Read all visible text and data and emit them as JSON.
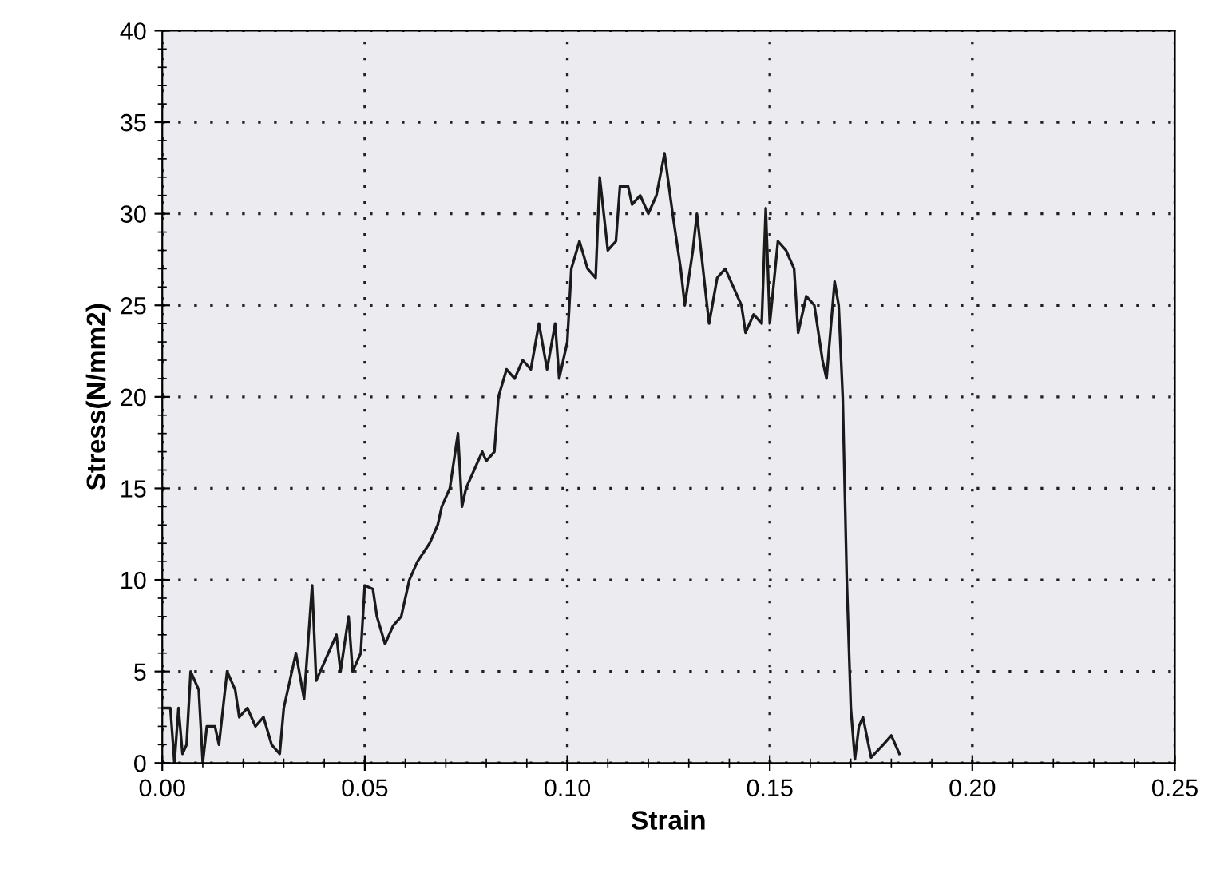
{
  "chart_data": {
    "type": "line",
    "xlabel": "Strain",
    "ylabel": "Stress(N/mm2)",
    "x": [
      0.0,
      0.002,
      0.003,
      0.004,
      0.005,
      0.006,
      0.007,
      0.009,
      0.01,
      0.011,
      0.013,
      0.014,
      0.016,
      0.018,
      0.019,
      0.021,
      0.023,
      0.025,
      0.027,
      0.029,
      0.03,
      0.033,
      0.035,
      0.037,
      0.038,
      0.041,
      0.043,
      0.044,
      0.046,
      0.047,
      0.049,
      0.05,
      0.052,
      0.053,
      0.055,
      0.057,
      0.059,
      0.061,
      0.063,
      0.066,
      0.068,
      0.069,
      0.071,
      0.073,
      0.074,
      0.075,
      0.077,
      0.079,
      0.08,
      0.082,
      0.083,
      0.085,
      0.087,
      0.089,
      0.091,
      0.093,
      0.095,
      0.097,
      0.098,
      0.1,
      0.101,
      0.103,
      0.105,
      0.107,
      0.108,
      0.11,
      0.112,
      0.113,
      0.115,
      0.116,
      0.118,
      0.12,
      0.122,
      0.124,
      0.126,
      0.128,
      0.129,
      0.131,
      0.132,
      0.134,
      0.135,
      0.137,
      0.139,
      0.141,
      0.143,
      0.144,
      0.146,
      0.148,
      0.149,
      0.15,
      0.152,
      0.154,
      0.156,
      0.157,
      0.159,
      0.161,
      0.163,
      0.164,
      0.166,
      0.167,
      0.168,
      0.169,
      0.17,
      0.171,
      0.172,
      0.173,
      0.175,
      0.178,
      0.18,
      0.182
    ],
    "series": [
      {
        "color": "#1a1a1a",
        "values": [
          3,
          3,
          0,
          3,
          0.5,
          1,
          5,
          4,
          0,
          2,
          2,
          1,
          5,
          4,
          2.5,
          3,
          2,
          2.5,
          1,
          0.5,
          3,
          6,
          3.5,
          9.7,
          4.5,
          6,
          7,
          5,
          8,
          5,
          6,
          9.7,
          9.5,
          8,
          6.5,
          7.5,
          8,
          10,
          11,
          12,
          13,
          14,
          15,
          18,
          14,
          15,
          16,
          17,
          16.5,
          17,
          20,
          21.5,
          21,
          22,
          21.5,
          24,
          21.5,
          24,
          21,
          23,
          27,
          28.5,
          27,
          26.5,
          32,
          28,
          28.5,
          31.5,
          31.5,
          30.5,
          31,
          30,
          31,
          33.3,
          30,
          27,
          25,
          28,
          30,
          26,
          24,
          26.5,
          27,
          26,
          25,
          23.5,
          24.5,
          24,
          30.3,
          24,
          28.5,
          28,
          27,
          23.5,
          25.5,
          25,
          22,
          21,
          26.3,
          25,
          20,
          10,
          3,
          0.2,
          2,
          2.5,
          0.3,
          1,
          1.5,
          0.5
        ]
      }
    ],
    "xlim": [
      0,
      0.25
    ],
    "xticks": [
      {
        "value": 0,
        "label": "0.00"
      },
      {
        "value": 0.05,
        "label": "0.05"
      },
      {
        "value": 0.1,
        "label": "0.10"
      },
      {
        "value": 0.15,
        "label": "0.15"
      },
      {
        "value": 0.2,
        "label": "0.20"
      },
      {
        "value": 0.25,
        "label": "0.25"
      }
    ],
    "ylim": [
      0,
      40
    ],
    "yticks": [
      0,
      5,
      10,
      15,
      20,
      25,
      30,
      35,
      40
    ],
    "grid": true,
    "marker": "none",
    "line_style": "solid"
  }
}
